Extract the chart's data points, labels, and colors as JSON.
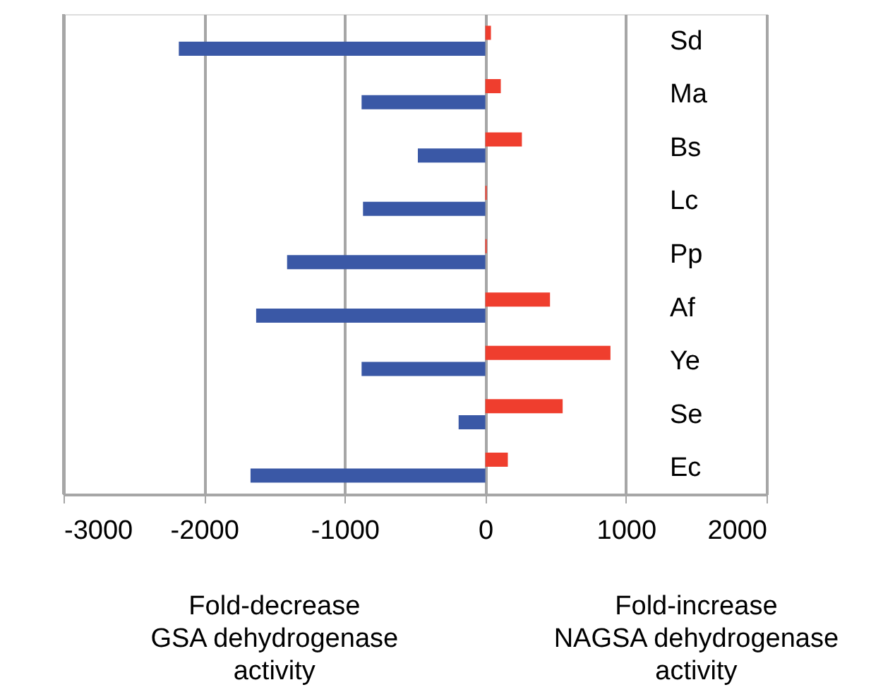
{
  "chart_data": {
    "type": "bar",
    "orientation": "horizontal",
    "categories": [
      "Sd",
      "Ma",
      "Bs",
      "Lc",
      "Pp",
      "Af",
      "Ye",
      "Se",
      "Ec"
    ],
    "series": [
      {
        "color": "#ef3e2e",
        "values": [
          40,
          110,
          260,
          10,
          10,
          460,
          890,
          550,
          160
        ]
      },
      {
        "color": "#3a58a6",
        "values": [
          -2180,
          -880,
          -480,
          -870,
          -1410,
          -1630,
          -880,
          -190,
          -1670
        ]
      }
    ],
    "xlim": [
      -3000,
      2000
    ],
    "xticks": [
      -3000,
      -2000,
      -1000,
      0,
      1000,
      2000
    ],
    "grid": "x",
    "legend": false,
    "annotations": [
      "Fold-decrease\nGSA dehydrogenase\nactivity",
      "Fold-increase\nNAGSA dehydrogenase\nactivity"
    ]
  }
}
